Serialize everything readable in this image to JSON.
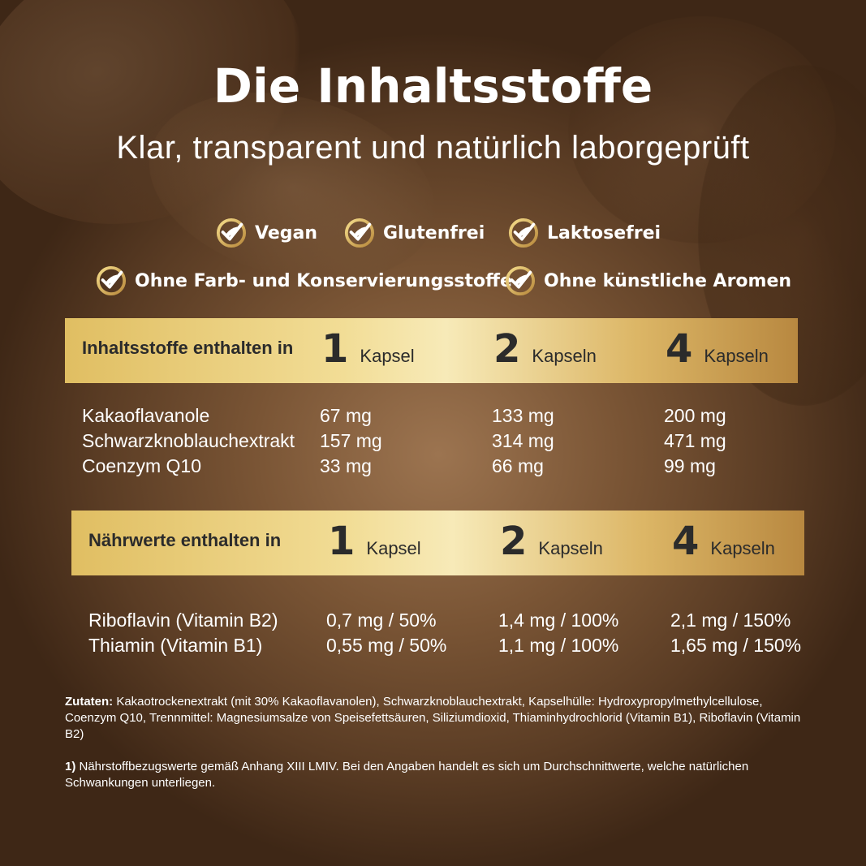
{
  "header": {
    "title": "Die Inhaltsstoffe",
    "subtitle": "Klar, transparent und natürlich laborgeprüft"
  },
  "badges": [
    {
      "icon": "leaf-check-icon",
      "label": "Vegan"
    },
    {
      "icon": "leaf-check-icon",
      "label": "Glutenfrei"
    },
    {
      "icon": "leaf-check-icon",
      "label": "Laktosefrei"
    },
    {
      "icon": "leaf-check-icon",
      "label": "Ohne Farb- und Konservierungsstoffe"
    },
    {
      "icon": "leaf-check-icon",
      "label": "Ohne künstliche Aromen"
    }
  ],
  "colors": {
    "gold": "#e0be62",
    "gold_light": "#f7eab8",
    "gold_dark": "#b88840",
    "band_text": "#2b2b2b"
  },
  "ingredients_table": {
    "label": "Inhaltsstoffe enthalten in",
    "columns": [
      {
        "num": "1",
        "unit": "Kapsel"
      },
      {
        "num": "2",
        "unit": "Kapseln"
      },
      {
        "num": "4",
        "unit": "Kapseln"
      }
    ],
    "rows": [
      {
        "name": "Kakaoflavanole",
        "values": [
          "67 mg",
          "133 mg",
          "200 mg"
        ]
      },
      {
        "name": "Schwarzknoblauchextrakt",
        "values": [
          "157 mg",
          "314 mg",
          "471 mg"
        ]
      },
      {
        "name": "Coenzym Q10",
        "values": [
          "33 mg",
          "66 mg",
          "99 mg"
        ]
      }
    ]
  },
  "nutrients_table": {
    "label": "Nährwerte enthalten in",
    "columns": [
      {
        "num": "1",
        "unit": "Kapsel"
      },
      {
        "num": "2",
        "unit": "Kapseln"
      },
      {
        "num": "4",
        "unit": "Kapseln"
      }
    ],
    "rows": [
      {
        "name": "Riboflavin (Vitamin B2)",
        "values": [
          "0,7 mg / 50%",
          "1,4 mg / 100%",
          "2,1 mg / 150%"
        ]
      },
      {
        "name": "Thiamin (Vitamin B1)",
        "values": [
          "0,55 mg / 50%",
          "1,1 mg / 100%",
          "1,65 mg / 150%"
        ]
      }
    ]
  },
  "notes": {
    "ingredients_label": "Zutaten:",
    "ingredients_text": " Kakaotrockenextrakt (mit 30% Kakaoflavanolen), Schwarzknoblauchextrakt, Kapselhülle: Hydroxypropylmethylcellulose, Coenzym Q10, Trennmittel: Magnesiumsalze von Speisefettsäuren, Siliziumdioxid, Thiaminhydrochlorid (Vitamin B1), Riboflavin (Vitamin B2)",
    "footnote_label": "1)",
    "footnote_text": " Nährstoffbezugswerte gemäß Anhang XIII LMIV. Bei den Angaben handelt es sich um Durchschnittwerte, welche natürlichen Schwankungen unterliegen."
  }
}
